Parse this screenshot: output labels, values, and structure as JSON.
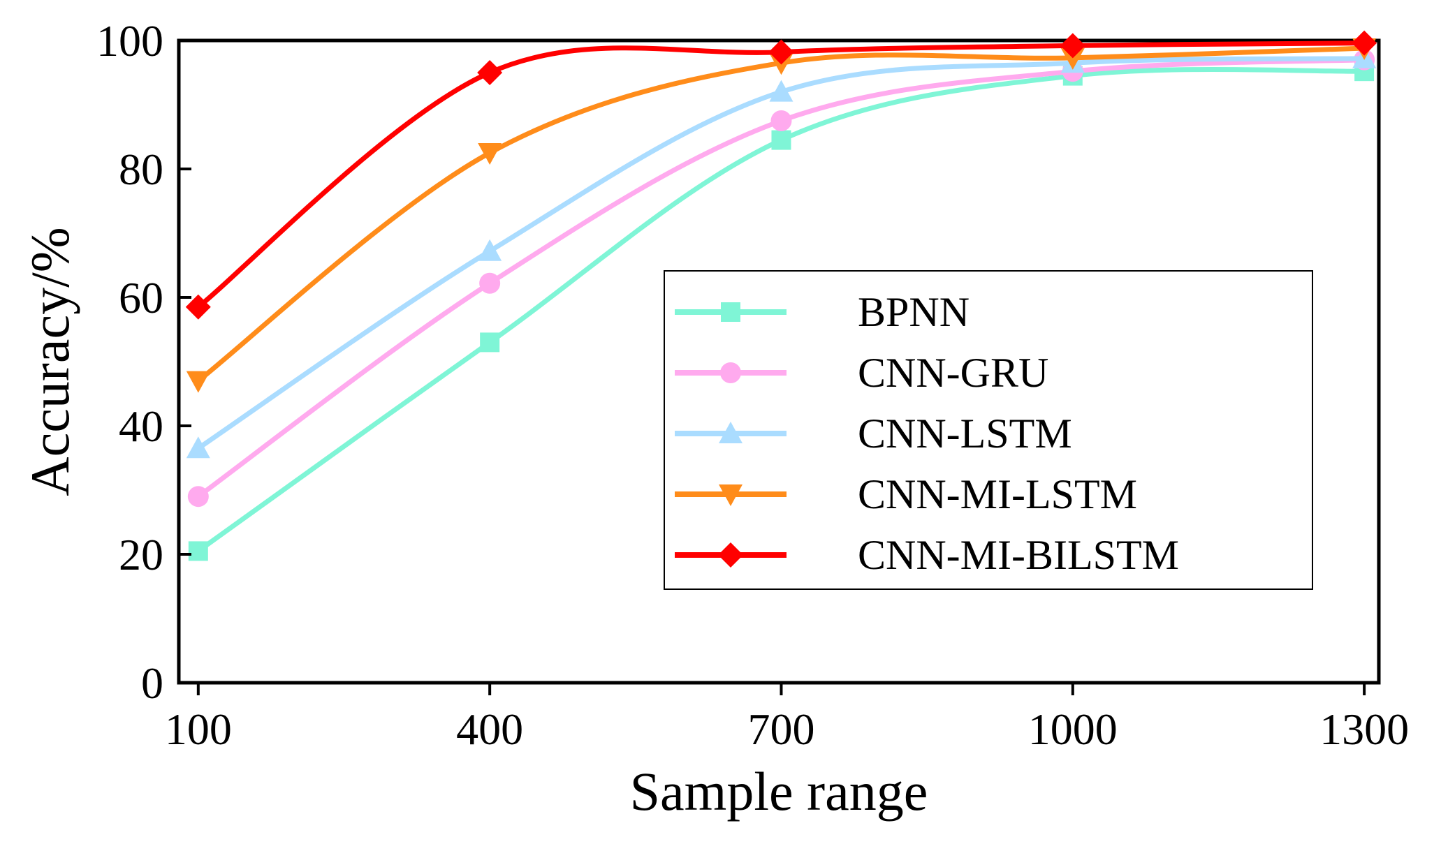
{
  "chart_data": {
    "type": "line",
    "title": "",
    "xlabel": "Sample range",
    "ylabel": "Accuracy/%",
    "x": [
      100,
      400,
      700,
      1000,
      1300
    ],
    "xlim": [
      80,
      1315
    ],
    "ylim": [
      0,
      100
    ],
    "xticks": [
      "100",
      "400",
      "700",
      "1000",
      "1300"
    ],
    "yticks": [
      "0",
      "20",
      "40",
      "60",
      "80",
      "100"
    ],
    "grid": false,
    "legend_position": "center-right",
    "series": [
      {
        "name": "BPNN",
        "color": "#7ff5d6",
        "marker": "square",
        "values": [
          20.5,
          53,
          84.5,
          94.5,
          95.2
        ]
      },
      {
        "name": "CNN-GRU",
        "color": "#ffaaee",
        "marker": "circle",
        "values": [
          29,
          62.2,
          87.5,
          95.2,
          97
        ]
      },
      {
        "name": "CNN-LSTM",
        "color": "#aadcff",
        "marker": "triangle-up",
        "values": [
          36.5,
          67.2,
          92,
          96.5,
          97.2
        ]
      },
      {
        "name": "CNN-MI-LSTM",
        "color": "#ff8c1a",
        "marker": "triangle-down",
        "values": [
          47,
          82.5,
          96.5,
          97.3,
          98.8
        ]
      },
      {
        "name": "CNN-MI-BILSTM",
        "color": "#ff0000",
        "marker": "diamond",
        "values": [
          58.5,
          95,
          98.2,
          99.2,
          99.6
        ]
      }
    ]
  }
}
